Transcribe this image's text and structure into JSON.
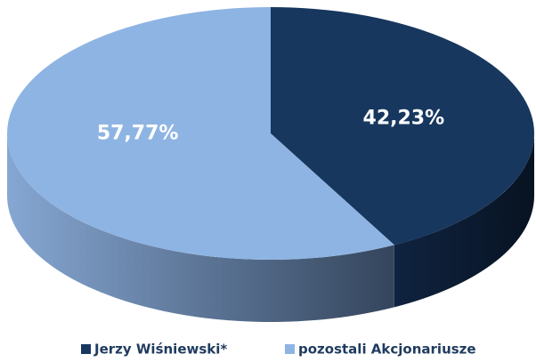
{
  "chart_data": {
    "type": "pie",
    "categories": [
      "Jerzy Wiśniewski*",
      "pozostali Akcjonariusze"
    ],
    "values": [
      42.23,
      57.77
    ],
    "value_labels": [
      "42,23%",
      "57,77%"
    ],
    "colors": [
      "#17375e",
      "#8eb4e3"
    ],
    "legend": "bottom"
  }
}
